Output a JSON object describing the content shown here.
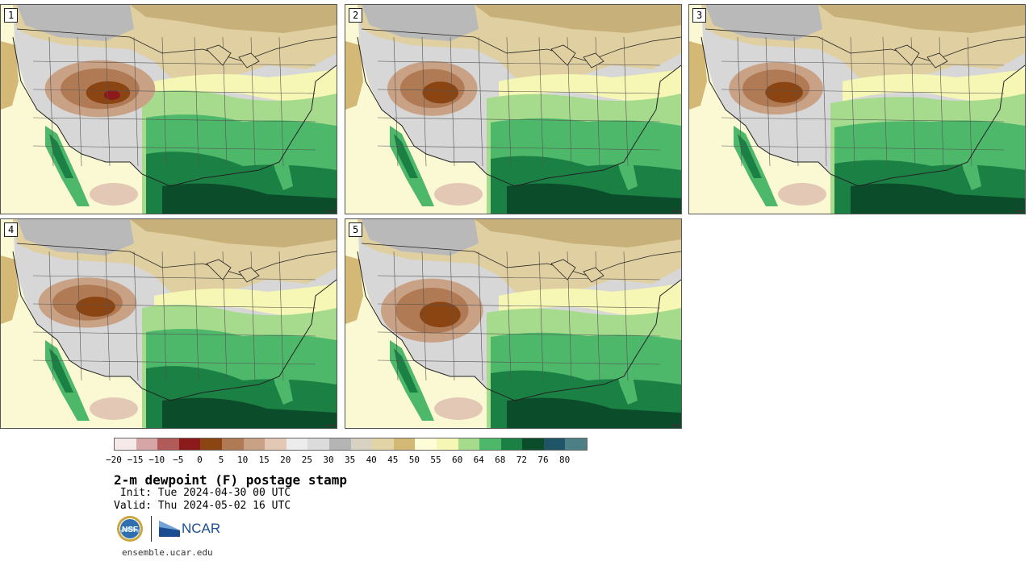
{
  "panels": [
    {
      "number": "1",
      "variant": 0
    },
    {
      "number": "2",
      "variant": 1
    },
    {
      "number": "3",
      "variant": 2
    },
    {
      "number": "4",
      "variant": 3
    },
    {
      "number": "5",
      "variant": 4
    }
  ],
  "colorbar": {
    "colors": [
      "#f5e9e9",
      "#d6a5a5",
      "#b05a5a",
      "#8b1a1a",
      "#8b4513",
      "#b07a55",
      "#c9a286",
      "#e3c8b5",
      "#ececec",
      "#dcdcdc",
      "#b5b5b5",
      "#d8d2c2",
      "#e3d4a8",
      "#d4b876",
      "#fdfdd8",
      "#f6f7b4",
      "#a6db8e",
      "#4db86a",
      "#1b8044",
      "#0b4d2a",
      "#1f5566",
      "#4d7f86"
    ],
    "labels": [
      "−20",
      "−15",
      "−10",
      "−5",
      "0",
      "5",
      "10",
      "15",
      "20",
      "25",
      "30",
      "35",
      "40",
      "45",
      "50",
      "55",
      "60",
      "64",
      "68",
      "72",
      "76",
      "80"
    ]
  },
  "title": "2-m dewpoint (F) postage stamp",
  "init": " Init: Tue 2024-04-30 00 UTC",
  "valid": "Valid: Thu 2024-05-02 16 UTC",
  "logos": {
    "nsf": "NSF",
    "ncar": "NCAR"
  },
  "website": "ensemble.ucar.edu"
}
